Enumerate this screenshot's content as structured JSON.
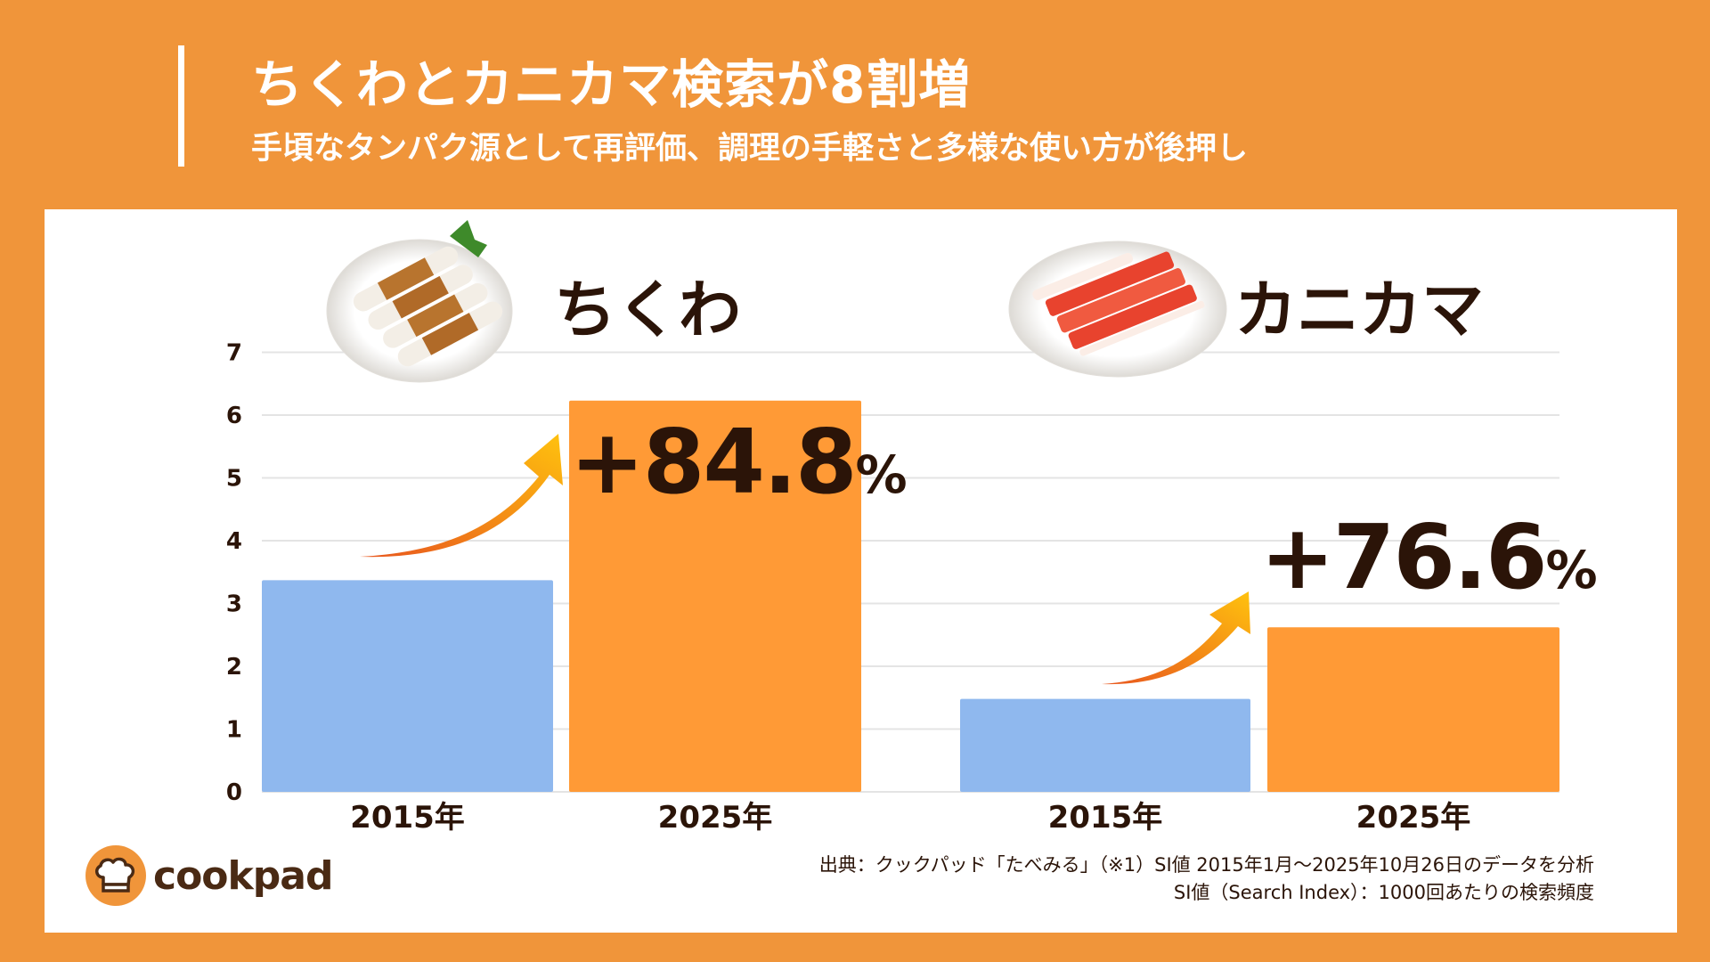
{
  "header": {
    "title": "ちくわとカニカマ検索が8割増",
    "subtitle": "手頃なタンパク源として再評価、調理の手軽さと多様な使い方が後押し"
  },
  "chart_data": {
    "type": "bar",
    "ylim": [
      0,
      7
    ],
    "yticks": [
      "0",
      "1",
      "2",
      "3",
      "4",
      "5",
      "6",
      "7"
    ],
    "grid": true,
    "groups": [
      {
        "name": "ちくわ",
        "categories": [
          "2015年",
          "2025年"
        ],
        "values": [
          3.37,
          6.23
        ],
        "growth_label": "+84.8",
        "growth_unit": "%"
      },
      {
        "name": "カニカマ",
        "categories": [
          "2015年",
          "2025年"
        ],
        "values": [
          1.48,
          2.62
        ],
        "growth_label": "+76.6",
        "growth_unit": "%"
      }
    ],
    "colors": {
      "2015年": "#8FB8EE",
      "2025年": "#FF9A36"
    }
  },
  "colors": {
    "background": "#F0953A",
    "text": "#2B1408",
    "arrow_start": "#E8561E",
    "arrow_end": "#FFC20E"
  },
  "images": {
    "chikuwa": "chikuwa-plate-photo",
    "kanikama": "kanikama-plate-photo"
  },
  "logo": {
    "text": "cookpad",
    "icon": "chef-hat-icon"
  },
  "footer": {
    "source": "出典：クックパッド「たべみる」（※1）SI値 2015年1月～2025年10月26日のデータを分析",
    "note": "SI値（Search Index）：1000回あたりの検索頻度"
  }
}
